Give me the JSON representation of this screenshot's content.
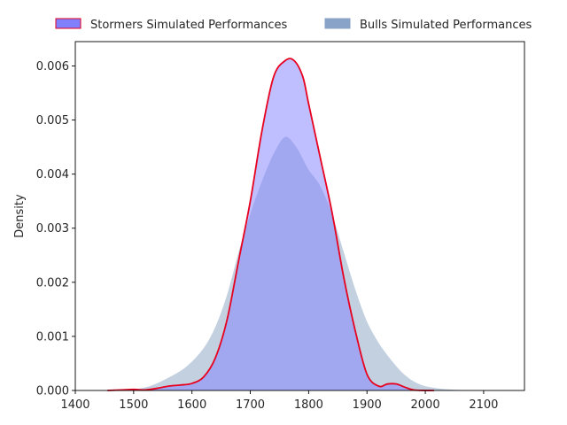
{
  "chart_data": {
    "type": "area",
    "xlabel": "",
    "ylabel": "Density",
    "xlim": [
      1400,
      2170
    ],
    "ylim": [
      0,
      0.00645
    ],
    "x_ticks": [
      1400,
      1500,
      1600,
      1700,
      1800,
      1900,
      2000,
      2100
    ],
    "x_tick_labels": [
      "1400",
      "1500",
      "1600",
      "1700",
      "1800",
      "1900",
      "2000",
      "2100"
    ],
    "y_ticks": [
      0,
      0.001,
      0.002,
      0.003,
      0.004,
      0.005,
      0.006
    ],
    "y_tick_labels": [
      "0.000",
      "0.001",
      "0.002",
      "0.003",
      "0.004",
      "0.005",
      "0.006"
    ],
    "grid": false,
    "legend_position": "top-center",
    "legend": [
      {
        "label": "Stormers Simulated Performances",
        "fill": "#8080ff",
        "edge": "#e8001f"
      },
      {
        "label": "Bulls Simulated Performances",
        "fill": "#89a2c8",
        "edge": "#89a2c8"
      }
    ],
    "series": [
      {
        "name": "Bulls Simulated Performances",
        "fill_color": "#c2d0e0",
        "line_color": "#ffffff",
        "x": [
          1450,
          1500,
          1530,
          1560,
          1590,
          1620,
          1640,
          1660,
          1680,
          1700,
          1720,
          1740,
          1760,
          1780,
          1800,
          1820,
          1840,
          1860,
          1880,
          1900,
          1920,
          1940,
          1960,
          1980,
          2000,
          2030,
          2060,
          2100,
          2140
        ],
        "y": [
          0.0,
          3e-05,
          0.0001,
          0.00025,
          0.00045,
          0.0008,
          0.0012,
          0.0018,
          0.0026,
          0.0033,
          0.0039,
          0.0044,
          0.0047,
          0.0045,
          0.0041,
          0.0038,
          0.0033,
          0.0026,
          0.0019,
          0.0013,
          0.0009,
          0.0006,
          0.00035,
          0.00018,
          9e-05,
          4e-05,
          2e-05,
          5e-06,
          0.0
        ]
      },
      {
        "name": "Stormers Simulated Performances",
        "fill_color": "#bdbdfe",
        "line_color": "#e8001f",
        "x": [
          1455,
          1480,
          1500,
          1520,
          1540,
          1560,
          1580,
          1600,
          1620,
          1640,
          1660,
          1680,
          1700,
          1720,
          1740,
          1760,
          1775,
          1790,
          1800,
          1820,
          1840,
          1860,
          1880,
          1900,
          1920,
          1935,
          1950,
          1965,
          1980,
          2000,
          2015
        ],
        "y": [
          0.0,
          1e-05,
          2e-05,
          1e-05,
          4e-05,
          8e-05,
          0.0001,
          0.00013,
          0.00025,
          0.0006,
          0.0013,
          0.0024,
          0.0035,
          0.0048,
          0.0058,
          0.0061,
          0.0061,
          0.0058,
          0.0053,
          0.0043,
          0.0033,
          0.0021,
          0.0011,
          0.0003,
          8e-05,
          0.00012,
          0.00012,
          6e-05,
          1e-05,
          0.0,
          0.0
        ]
      }
    ]
  }
}
